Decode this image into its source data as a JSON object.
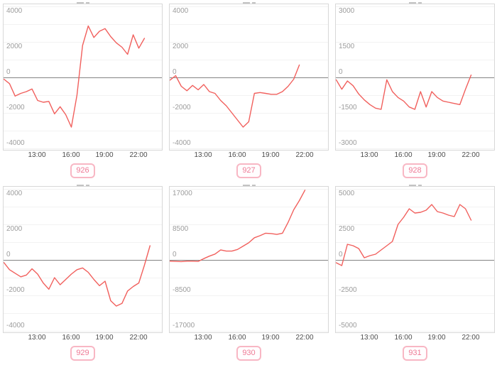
{
  "styles": {
    "background": "#ffffff",
    "line_color": "#f1605d",
    "zero_line_color": "#848484",
    "grid_line_color": "#f2f2f2",
    "plot_border_color": "#d8d8d8",
    "y_label_color": "#9c9c9c",
    "x_label_color": "#4d4d4d",
    "badge_border_color": "#f8b7c4",
    "badge_text_color": "#ee7b96",
    "title_fragment_color": "#c3c3c3"
  },
  "x_axis": {
    "tick_labels": [
      "13:00",
      "16:00",
      "19:00",
      "22:00"
    ]
  },
  "chart_data": [
    {
      "type": "line",
      "badge": "926",
      "y_ticks": [
        "4000",
        "2000",
        "0",
        "-2000",
        "-4000"
      ],
      "y_tick_step": 2000,
      "ylim": [
        -4000,
        4000
      ],
      "x_tick_labels": [
        "13:00",
        "16:00",
        "19:00",
        "22:00"
      ],
      "x_range_hours": [
        10,
        23
      ],
      "grid": "horizontal-only",
      "x": [
        10,
        10.5,
        11,
        11.5,
        12,
        12.5,
        13,
        13.5,
        14,
        14.5,
        15,
        15.5,
        16,
        16.5,
        17,
        17.5,
        18,
        18.5,
        19,
        19.5,
        20,
        20.5,
        21,
        21.5,
        22,
        22.5
      ],
      "values": [
        -100,
        -350,
        -1050,
        -900,
        -800,
        -650,
        -1300,
        -1400,
        -1350,
        -2050,
        -1650,
        -2100,
        -2800,
        -1000,
        1800,
        2900,
        2250,
        2600,
        2750,
        2300,
        1950,
        1700,
        1300,
        2400,
        1650,
        2200
      ]
    },
    {
      "type": "line",
      "badge": "927",
      "y_ticks": [
        "4000",
        "2000",
        "0",
        "-2000",
        "-4000"
      ],
      "y_tick_step": 2000,
      "ylim": [
        -4000,
        4000
      ],
      "x_tick_labels": [
        "13:00",
        "16:00",
        "19:00",
        "22:00"
      ],
      "x_range_hours": [
        10,
        23
      ],
      "grid": "horizontal-only",
      "x": [
        10,
        10.5,
        11,
        11.5,
        12,
        12.5,
        13,
        13.5,
        14,
        14.5,
        15,
        15.5,
        16,
        16.5,
        17,
        17.5,
        18,
        18.5,
        19,
        19.5,
        20,
        20.5,
        21,
        21.5
      ],
      "values": [
        -150,
        100,
        -500,
        -750,
        -450,
        -700,
        -400,
        -800,
        -900,
        -1300,
        -1600,
        -2000,
        -2400,
        -2800,
        -2500,
        -900,
        -850,
        -900,
        -950,
        -950,
        -800,
        -500,
        -100,
        700
      ]
    },
    {
      "type": "line",
      "badge": "928",
      "y_ticks": [
        "3000",
        "1500",
        "0",
        "-1500",
        "-3000"
      ],
      "y_tick_step": 1500,
      "ylim": [
        -3000,
        3000
      ],
      "x_tick_labels": [
        "13:00",
        "16:00",
        "19:00",
        "22:00"
      ],
      "x_range_hours": [
        10,
        23
      ],
      "grid": "horizontal-only",
      "x": [
        10,
        10.5,
        11,
        11.5,
        12,
        12.5,
        13,
        13.5,
        14,
        14.5,
        15,
        15.5,
        16,
        16.5,
        17,
        17.5,
        18,
        18.5,
        19,
        19.5,
        20,
        20.5,
        21,
        21.5,
        22
      ],
      "values": [
        -100,
        -500,
        -150,
        -350,
        -700,
        -950,
        -1150,
        -1300,
        -1350,
        -100,
        -600,
        -850,
        -1000,
        -1250,
        -1350,
        -600,
        -1250,
        -600,
        -850,
        -1000,
        -1050,
        -1100,
        -1150,
        -500,
        100
      ]
    },
    {
      "type": "line",
      "badge": "929",
      "y_ticks": [
        "4000",
        "2000",
        "0",
        "-2000",
        "-4000"
      ],
      "y_tick_step": 2000,
      "ylim": [
        -4000,
        4000
      ],
      "x_tick_labels": [
        "13:00",
        "16:00",
        "19:00",
        "22:00"
      ],
      "x_range_hours": [
        10,
        23
      ],
      "grid": "horizontal-only",
      "x": [
        10,
        10.5,
        11,
        11.5,
        12,
        12.5,
        13,
        13.5,
        14,
        14.5,
        15,
        15.5,
        16,
        16.5,
        17,
        17.5,
        18,
        18.5,
        19,
        19.5,
        20,
        20.5,
        21,
        21.5,
        22,
        22.5,
        23
      ],
      "values": [
        -150,
        -550,
        -750,
        -950,
        -850,
        -500,
        -800,
        -1300,
        -1650,
        -1000,
        -1400,
        -1100,
        -800,
        -550,
        -450,
        -700,
        -1100,
        -1450,
        -1200,
        -2300,
        -2600,
        -2450,
        -1750,
        -1500,
        -1300,
        -300,
        800
      ]
    },
    {
      "type": "line",
      "badge": "930",
      "y_ticks": [
        "17000",
        "8500",
        "0",
        "-8500",
        "-17000"
      ],
      "y_tick_step": 8500,
      "ylim": [
        -17000,
        17000
      ],
      "x_tick_labels": [
        "13:00",
        "16:00",
        "19:00",
        "22:00"
      ],
      "x_range_hours": [
        10,
        23
      ],
      "grid": "horizontal-only",
      "x": [
        10,
        10.5,
        11,
        11.5,
        12,
        12.5,
        13,
        13.5,
        14,
        14.5,
        15,
        15.5,
        16,
        16.5,
        17,
        17.5,
        18,
        18.5,
        19,
        19.5,
        20,
        20.5,
        21,
        21.5,
        22
      ],
      "values": [
        -300,
        -350,
        -400,
        -300,
        -300,
        -350,
        300,
        900,
        1400,
        2400,
        2100,
        2100,
        2500,
        3300,
        4100,
        5300,
        5800,
        6400,
        6300,
        6100,
        6400,
        9000,
        12000,
        14200,
        16700
      ]
    },
    {
      "type": "line",
      "badge": "931",
      "y_ticks": [
        "5000",
        "2500",
        "0",
        "-2500",
        "-5000"
      ],
      "y_tick_step": 2500,
      "ylim": [
        -5000,
        5000
      ],
      "x_tick_labels": [
        "13:00",
        "16:00",
        "19:00",
        "22:00"
      ],
      "x_range_hours": [
        10,
        23
      ],
      "grid": "horizontal-only",
      "x": [
        10,
        10.5,
        11,
        11.5,
        12,
        12.5,
        13,
        13.5,
        14,
        14.5,
        15,
        15.5,
        16,
        16.5,
        17,
        17.5,
        18,
        18.5,
        19,
        19.5,
        20,
        20.5,
        21,
        21.5,
        22
      ],
      "values": [
        -200,
        -400,
        1100,
        1000,
        800,
        150,
        300,
        400,
        700,
        1000,
        1300,
        2500,
        3000,
        3600,
        3300,
        3350,
        3500,
        3900,
        3400,
        3300,
        3150,
        3050,
        3900,
        3600,
        2800
      ]
    }
  ]
}
